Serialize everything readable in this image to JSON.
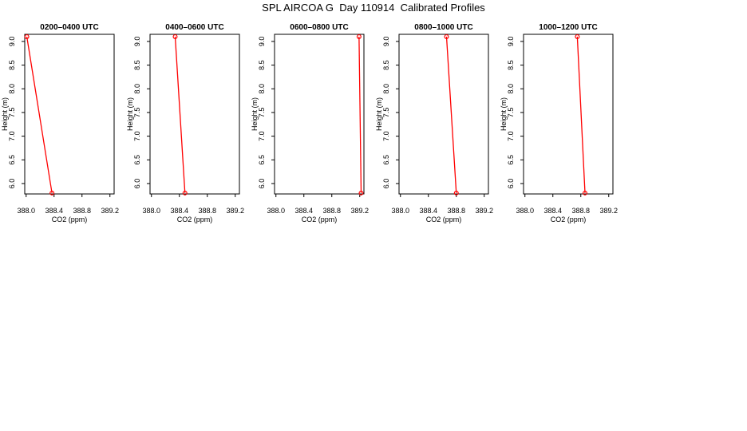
{
  "title": "SPL AIRCOA G  Day 110914  Calibrated Profiles",
  "chart_data": [
    {
      "type": "line",
      "title": "0200–0400 UTC",
      "xlabel": "CO2 (ppm)",
      "ylabel": "Height (m)",
      "xlim": [
        387.98,
        389.26
      ],
      "ylim": [
        5.78,
        9.15
      ],
      "xticks": [
        "388.0",
        "388.4",
        "388.8",
        "389.2"
      ],
      "yticks": [
        "6.0",
        "6.5",
        "7.0",
        "7.5",
        "8.0",
        "8.5",
        "9.0"
      ],
      "color": "#ff0000",
      "points": [
        {
          "x": 388.01,
          "y": 9.1
        },
        {
          "x": 388.37,
          "y": 5.8
        }
      ]
    },
    {
      "type": "line",
      "title": "0400–0600 UTC",
      "xlabel": "CO2 (ppm)",
      "ylabel": "Height (m)",
      "xlim": [
        387.98,
        389.26
      ],
      "ylim": [
        5.78,
        9.15
      ],
      "xticks": [
        "388.0",
        "388.4",
        "388.8",
        "389.2"
      ],
      "yticks": [
        "6.0",
        "6.5",
        "7.0",
        "7.5",
        "8.0",
        "8.5",
        "9.0"
      ],
      "color": "#ff0000",
      "points": [
        {
          "x": 388.34,
          "y": 9.1
        },
        {
          "x": 388.48,
          "y": 5.8
        }
      ]
    },
    {
      "type": "line",
      "title": "0600–0800 UTC",
      "xlabel": "CO2 (ppm)",
      "ylabel": "Height (m)",
      "xlim": [
        387.98,
        389.26
      ],
      "ylim": [
        5.78,
        9.15
      ],
      "xticks": [
        "388.0",
        "388.4",
        "388.8",
        "389.2"
      ],
      "yticks": [
        "6.0",
        "6.5",
        "7.0",
        "7.5",
        "8.0",
        "8.5",
        "9.0"
      ],
      "color": "#ff0000",
      "points": [
        {
          "x": 389.19,
          "y": 9.1
        },
        {
          "x": 389.22,
          "y": 5.8
        }
      ]
    },
    {
      "type": "line",
      "title": "0800–1000 UTC",
      "xlabel": "CO2 (ppm)",
      "ylabel": "Height (m)",
      "xlim": [
        387.98,
        389.26
      ],
      "ylim": [
        5.78,
        9.15
      ],
      "xticks": [
        "388.0",
        "388.4",
        "388.8",
        "389.2"
      ],
      "yticks": [
        "6.0",
        "6.5",
        "7.0",
        "7.5",
        "8.0",
        "8.5",
        "9.0"
      ],
      "color": "#ff0000",
      "points": [
        {
          "x": 388.66,
          "y": 9.1
        },
        {
          "x": 388.8,
          "y": 5.8
        }
      ]
    },
    {
      "type": "line",
      "title": "1000–1200 UTC",
      "xlabel": "CO2 (ppm)",
      "ylabel": "Height (m)",
      "xlim": [
        387.98,
        389.26
      ],
      "ylim": [
        5.78,
        9.15
      ],
      "xticks": [
        "388.0",
        "388.4",
        "388.8",
        "389.2"
      ],
      "yticks": [
        "6.0",
        "6.5",
        "7.0",
        "7.5",
        "8.0",
        "8.5",
        "9.0"
      ],
      "color": "#ff0000",
      "points": [
        {
          "x": 388.75,
          "y": 9.1
        },
        {
          "x": 388.86,
          "y": 5.8
        }
      ]
    }
  ]
}
